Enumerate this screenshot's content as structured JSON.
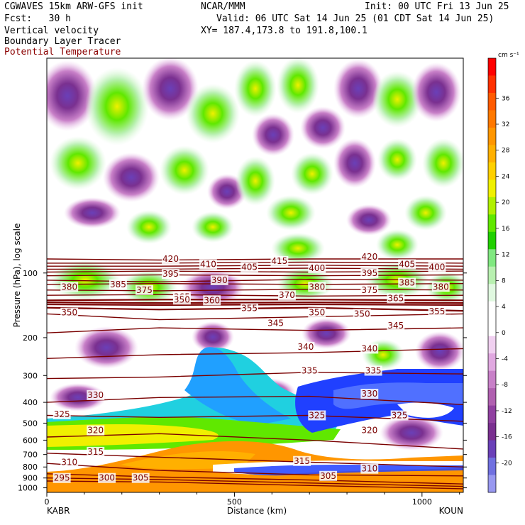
{
  "header": {
    "model": "CGWAVES 15km ARW-GFS init",
    "org": "NCAR/MMM",
    "init": "Init: 00 UTC Fri 13 Jun 25",
    "fcst": "Fcst:   30 h",
    "valid": "Valid: 06 UTC Sat 14 Jun 25 (01 CDT Sat 14 Jun 25)",
    "var1": "Vertical velocity",
    "var2": "Boundary Layer Tracer",
    "var3": "Potential Temperature",
    "xy": "XY= 187.4,173.8 to 191.8,100.1"
  },
  "colors": {
    "theta": "#7a0000",
    "var3_text": "#8b0000"
  },
  "chart_data": {
    "type": "heatmap",
    "xlabel": "Distance (km)",
    "ylabel": "Pressure (hPa), log scale",
    "xlim": [
      0,
      1110
    ],
    "ylim": [
      1050,
      10
    ],
    "x_ticks": [
      0,
      500,
      1000
    ],
    "y_ticks": [
      100,
      200,
      300,
      400,
      500,
      600,
      700,
      800,
      900,
      1000
    ],
    "x_ends": [
      "KABR",
      "KOUN"
    ],
    "colorbar": {
      "units": "cm s⁻¹",
      "labels": [
        36,
        32,
        28,
        24,
        20,
        16,
        12,
        8,
        4,
        0,
        -4,
        -8,
        -12,
        -16,
        -20
      ],
      "colors": [
        "#ff0000",
        "#ff3000",
        "#ff5a00",
        "#ff7800",
        "#ff9600",
        "#ffb000",
        "#ffd000",
        "#f0f000",
        "#b0f000",
        "#60e800",
        "#20d000",
        "#80e880",
        "#b8f0b0",
        "#e0f8e0",
        "#ffffff",
        "#ffffff",
        "#f0d0f0",
        "#e0a8e0",
        "#c880c8",
        "#b060b0",
        "#9040a0",
        "#7a3090",
        "#6a40b8",
        "#7070e0",
        "#9898f0"
      ]
    },
    "series": [
      {
        "name": "Potential Temperature",
        "isentropes": [
          {
            "theta": 295,
            "x": [
              0,
              300,
              700,
              1110
            ],
            "p": [
              930,
              940,
              975,
              1010
            ]
          },
          {
            "theta": 300,
            "x": [
              0,
              300,
              700,
              1110
            ],
            "p": [
              900,
              915,
              950,
              985
            ]
          },
          {
            "theta": 305,
            "x": [
              0,
              300,
              700,
              1110
            ],
            "p": [
              860,
              890,
              920,
              960
            ]
          },
          {
            "theta": 310,
            "x": [
              0,
              300,
              700,
              1110
            ],
            "p": [
              770,
              830,
              870,
              880
            ]
          },
          {
            "theta": 315,
            "x": [
              0,
              300,
              700,
              1110
            ],
            "p": [
              690,
              720,
              760,
              800
            ]
          },
          {
            "theta": 320,
            "x": [
              0,
              300,
              700,
              1110
            ],
            "p": [
              580,
              560,
              600,
              660
            ]
          },
          {
            "theta": 325,
            "x": [
              0,
              300,
              700,
              1110
            ],
            "p": [
              460,
              470,
              460,
              490
            ]
          },
          {
            "theta": 330,
            "x": [
              0,
              300,
              700,
              1110
            ],
            "p": [
              400,
              380,
              375,
              410
            ]
          },
          {
            "theta": 335,
            "x": [
              0,
              300,
              700,
              1110
            ],
            "p": [
              310,
              305,
              290,
              295
            ]
          },
          {
            "theta": 340,
            "x": [
              0,
              300,
              700,
              1110
            ],
            "p": [
              250,
              240,
              235,
              225
            ]
          },
          {
            "theta": 345,
            "x": [
              0,
              300,
              700,
              1110
            ],
            "p": [
              190,
              180,
              185,
              180
            ]
          },
          {
            "theta": 350,
            "x": [
              0,
              300,
              700,
              1110
            ],
            "p": [
              155,
              165,
              160,
              155
            ]
          },
          {
            "theta": 355,
            "x": [
              0,
              300,
              700,
              1110
            ],
            "p": [
              145,
              148,
              145,
              150
            ]
          },
          {
            "theta": 360,
            "x": [
              0,
              300,
              700,
              1110
            ],
            "p": [
              140,
              141,
              140,
              141
            ]
          },
          {
            "theta": 365,
            "x": [
              0,
              300,
              700,
              1110
            ],
            "p": [
              137,
              138,
              137,
              138
            ]
          },
          {
            "theta": 370,
            "x": [
              0,
              300,
              700,
              1110
            ],
            "p": [
              134,
              133,
              133,
              134
            ]
          },
          {
            "theta": 375,
            "x": [
              0,
              300,
              700,
              1110
            ],
            "p": [
              127,
              126,
              128,
              127
            ]
          },
          {
            "theta": 380,
            "x": [
              0,
              300,
              700,
              1110
            ],
            "p": [
              120,
              121,
              119,
              120
            ]
          },
          {
            "theta": 385,
            "x": [
              0,
              300,
              700,
              1110
            ],
            "p": [
              113,
              112,
              113,
              112
            ]
          },
          {
            "theta": 390,
            "x": [
              0,
              300,
              700,
              1110
            ],
            "p": [
              108,
              110,
              107,
              108
            ]
          },
          {
            "theta": 395,
            "x": [
              0,
              300,
              700,
              1110
            ],
            "p": [
              103,
              102,
              103,
              102
            ]
          },
          {
            "theta": 400,
            "x": [
              0,
              300,
              700,
              1110
            ],
            "p": [
              99,
              98,
              99,
              98
            ]
          },
          {
            "theta": 405,
            "x": [
              0,
              300,
              700,
              1110
            ],
            "p": [
              96,
              96,
              95,
              96
            ]
          },
          {
            "theta": 410,
            "x": [
              0,
              300,
              700,
              1110
            ],
            "p": [
              93,
              93,
              92,
              93
            ]
          },
          {
            "theta": 415,
            "x": [
              0,
              300,
              700,
              1110
            ],
            "p": [
              90,
              90,
              89,
              90
            ]
          },
          {
            "theta": 420,
            "x": [
              0,
              300,
              700,
              1110
            ],
            "p": [
              86,
              87,
              86,
              86
            ]
          }
        ]
      }
    ],
    "contour_labels": [
      {
        "text": "420",
        "x": 330,
        "p": 86
      },
      {
        "text": "420",
        "x": 860,
        "p": 84
      },
      {
        "text": "415",
        "x": 620,
        "p": 88
      },
      {
        "text": "410",
        "x": 430,
        "p": 91
      },
      {
        "text": "405",
        "x": 540,
        "p": 94
      },
      {
        "text": "405",
        "x": 960,
        "p": 91
      },
      {
        "text": "400",
        "x": 720,
        "p": 95
      },
      {
        "text": "400",
        "x": 1040,
        "p": 94
      },
      {
        "text": "395",
        "x": 330,
        "p": 101
      },
      {
        "text": "395",
        "x": 860,
        "p": 100
      },
      {
        "text": "390",
        "x": 460,
        "p": 108
      },
      {
        "text": "385",
        "x": 190,
        "p": 113
      },
      {
        "text": "385",
        "x": 960,
        "p": 111
      },
      {
        "text": "380",
        "x": 60,
        "p": 116
      },
      {
        "text": "380",
        "x": 720,
        "p": 116
      },
      {
        "text": "380",
        "x": 1050,
        "p": 116
      },
      {
        "text": "375",
        "x": 260,
        "p": 120
      },
      {
        "text": "375",
        "x": 860,
        "p": 120
      },
      {
        "text": "370",
        "x": 640,
        "p": 127
      },
      {
        "text": "365",
        "x": 360,
        "p": 129
      },
      {
        "text": "365",
        "x": 930,
        "p": 131
      },
      {
        "text": "350",
        "x": 360,
        "p": 133
      },
      {
        "text": "360",
        "x": 440,
        "p": 134
      },
      {
        "text": "350",
        "x": 60,
        "p": 153
      },
      {
        "text": "350",
        "x": 720,
        "p": 153
      },
      {
        "text": "350",
        "x": 840,
        "p": 155
      },
      {
        "text": "355",
        "x": 540,
        "p": 146
      },
      {
        "text": "355",
        "x": 1040,
        "p": 151
      },
      {
        "text": "345",
        "x": 610,
        "p": 171
      },
      {
        "text": "345",
        "x": 930,
        "p": 176
      },
      {
        "text": "340",
        "x": 690,
        "p": 221
      },
      {
        "text": "340",
        "x": 860,
        "p": 225
      },
      {
        "text": "335",
        "x": 700,
        "p": 285
      },
      {
        "text": "335",
        "x": 870,
        "p": 285
      },
      {
        "text": "330",
        "x": 130,
        "p": 370
      },
      {
        "text": "330",
        "x": 860,
        "p": 365
      },
      {
        "text": "325",
        "x": 40,
        "p": 455
      },
      {
        "text": "325",
        "x": 720,
        "p": 460
      },
      {
        "text": "325",
        "x": 940,
        "p": 460
      },
      {
        "text": "320",
        "x": 130,
        "p": 540
      },
      {
        "text": "320",
        "x": 860,
        "p": 540
      },
      {
        "text": "315",
        "x": 130,
        "p": 680
      },
      {
        "text": "315",
        "x": 680,
        "p": 750
      },
      {
        "text": "310",
        "x": 60,
        "p": 760
      },
      {
        "text": "310",
        "x": 860,
        "p": 815
      },
      {
        "text": "305",
        "x": 250,
        "p": 900
      },
      {
        "text": "305",
        "x": 750,
        "p": 880
      },
      {
        "text": "300",
        "x": 160,
        "p": 900
      },
      {
        "text": "295",
        "x": 40,
        "p": 900
      }
    ]
  }
}
